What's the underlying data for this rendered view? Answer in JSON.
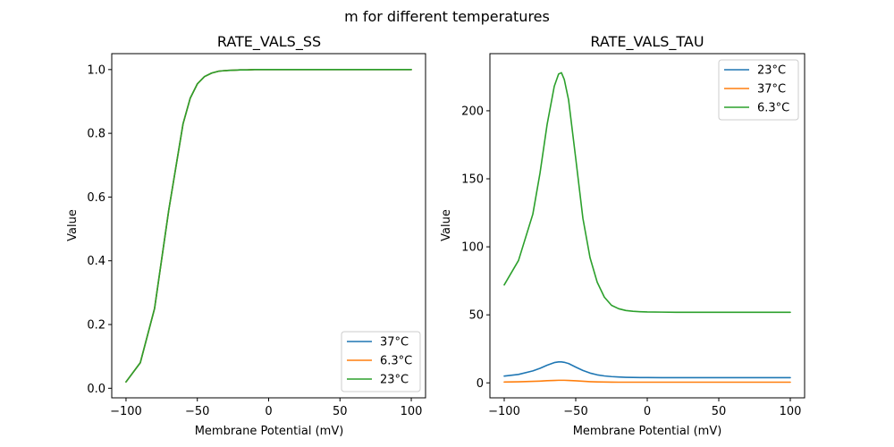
{
  "figure_title": "m for different temperatures",
  "chart_data": [
    {
      "type": "line",
      "title": "RATE_VALS_SS",
      "xlabel": "Membrane Potential (mV)",
      "ylabel": "Value",
      "xlim": [
        -110,
        110
      ],
      "ylim": [
        -0.03,
        1.05
      ],
      "xticks": [
        -100,
        -50,
        0,
        50,
        100
      ],
      "xtick_labels": [
        "−100",
        "−50",
        "0",
        "50",
        "100"
      ],
      "yticks": [
        0.0,
        0.2,
        0.4,
        0.6,
        0.8,
        1.0
      ],
      "ytick_labels": [
        "0.0",
        "0.2",
        "0.4",
        "0.6",
        "0.8",
        "1.0"
      ],
      "legend_position": "lower-right",
      "x": [
        -100,
        -90,
        -80,
        -70,
        -60,
        -55,
        -50,
        -45,
        -40,
        -35,
        -30,
        -25,
        -20,
        -15,
        -10,
        -5,
        0,
        10,
        20,
        40,
        60,
        80,
        100
      ],
      "series": [
        {
          "name": "37°C",
          "color": "#1f77b4",
          "values": [
            0.02,
            0.08,
            0.25,
            0.56,
            0.83,
            0.91,
            0.955,
            0.978,
            0.989,
            0.995,
            0.997,
            0.998,
            0.999,
            0.999,
            1.0,
            1.0,
            1.0,
            1.0,
            1.0,
            1.0,
            1.0,
            1.0,
            1.0
          ]
        },
        {
          "name": "6.3°C",
          "color": "#ff7f0e",
          "values": [
            0.02,
            0.08,
            0.25,
            0.56,
            0.83,
            0.91,
            0.955,
            0.978,
            0.989,
            0.995,
            0.997,
            0.998,
            0.999,
            0.999,
            1.0,
            1.0,
            1.0,
            1.0,
            1.0,
            1.0,
            1.0,
            1.0,
            1.0
          ]
        },
        {
          "name": "23°C",
          "color": "#2ca02c",
          "values": [
            0.02,
            0.08,
            0.25,
            0.56,
            0.83,
            0.91,
            0.955,
            0.978,
            0.989,
            0.995,
            0.997,
            0.998,
            0.999,
            0.999,
            1.0,
            1.0,
            1.0,
            1.0,
            1.0,
            1.0,
            1.0,
            1.0,
            1.0
          ]
        }
      ]
    },
    {
      "type": "line",
      "title": "RATE_VALS_TAU",
      "xlabel": "Membrane Potential (mV)",
      "ylabel": "Value",
      "xlim": [
        -110,
        110
      ],
      "ylim": [
        -11,
        242
      ],
      "xticks": [
        -100,
        -50,
        0,
        50,
        100
      ],
      "xtick_labels": [
        "−100",
        "−50",
        "0",
        "50",
        "100"
      ],
      "yticks": [
        0,
        50,
        100,
        150,
        200
      ],
      "ytick_labels": [
        "0",
        "50",
        "100",
        "150",
        "200"
      ],
      "legend_position": "top-right",
      "x": [
        -100,
        -90,
        -80,
        -75,
        -70,
        -65,
        -62,
        -60,
        -58,
        -55,
        -50,
        -45,
        -40,
        -35,
        -30,
        -25,
        -20,
        -15,
        -10,
        -5,
        0,
        10,
        20,
        40,
        60,
        80,
        100
      ],
      "series": [
        {
          "name": "23°C",
          "color": "#1f77b4",
          "values": [
            5.0,
            6.2,
            8.8,
            10.7,
            13.0,
            14.9,
            15.4,
            15.4,
            15.1,
            14.2,
            11.6,
            9.1,
            7.2,
            5.9,
            5.1,
            4.6,
            4.3,
            4.1,
            4.0,
            3.9,
            3.9,
            3.85,
            3.85,
            3.85,
            3.85,
            3.85,
            3.85
          ]
        },
        {
          "name": "37°C",
          "color": "#ff7f0e",
          "values": [
            0.6,
            0.8,
            1.1,
            1.3,
            1.6,
            1.8,
            1.9,
            1.9,
            1.9,
            1.8,
            1.5,
            1.2,
            0.9,
            0.7,
            0.6,
            0.55,
            0.5,
            0.5,
            0.5,
            0.5,
            0.5,
            0.5,
            0.5,
            0.5,
            0.5,
            0.5,
            0.5
          ]
        },
        {
          "name": "6.3°C",
          "color": "#2ca02c",
          "values": [
            72,
            90,
            124,
            154,
            190,
            218,
            227,
            228,
            223,
            208,
            165,
            121,
            92,
            74,
            63,
            57,
            54.5,
            53.2,
            52.6,
            52.3,
            52.1,
            52.0,
            51.9,
            51.9,
            51.9,
            51.9,
            51.9
          ]
        }
      ]
    }
  ]
}
